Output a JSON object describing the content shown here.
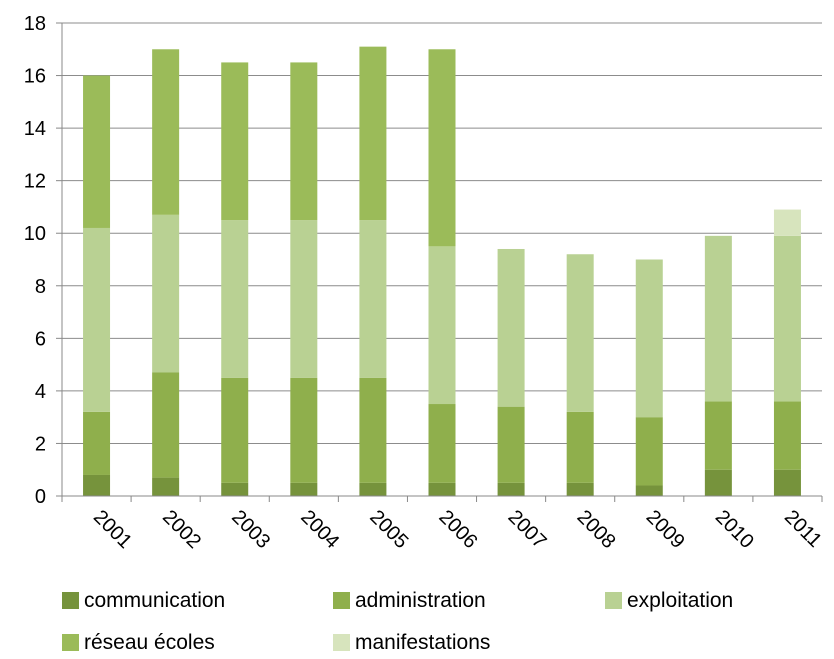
{
  "chart_data": {
    "type": "bar",
    "stacked": true,
    "title": "",
    "xlabel": "",
    "ylabel": "",
    "ylim": [
      0,
      18
    ],
    "yticks": [
      0,
      2,
      4,
      6,
      8,
      10,
      12,
      14,
      16,
      18
    ],
    "grid": true,
    "legend_position": "bottom",
    "categories": [
      "2001",
      "2002",
      "2003",
      "2004",
      "2005",
      "2006",
      "2007",
      "2008",
      "2009",
      "2010",
      "2011"
    ],
    "series": [
      {
        "name": "communication",
        "color": "#76933c",
        "values": [
          0.8,
          0.7,
          0.5,
          0.5,
          0.5,
          0.5,
          0.5,
          0.5,
          0.4,
          1.0,
          1.0
        ]
      },
      {
        "name": "administration",
        "color": "#8faf4c",
        "values": [
          2.4,
          4.0,
          4.0,
          4.0,
          4.0,
          3.0,
          2.9,
          2.7,
          2.6,
          2.6,
          2.6
        ]
      },
      {
        "name": "exploitation",
        "color": "#b9d193",
        "values": [
          7.0,
          6.0,
          6.0,
          6.0,
          6.0,
          6.0,
          6.0,
          6.0,
          6.0,
          6.3,
          6.3
        ]
      },
      {
        "name": "réseau écoles",
        "color": "#9bbb59",
        "values": [
          5.8,
          6.3,
          6.0,
          6.0,
          6.6,
          7.5,
          0,
          0,
          0,
          0,
          0
        ]
      },
      {
        "name": "manifestations",
        "color": "#d7e4bd",
        "values": [
          0,
          0,
          0,
          0,
          0,
          0,
          0,
          0,
          0,
          0,
          1.0
        ]
      }
    ]
  }
}
